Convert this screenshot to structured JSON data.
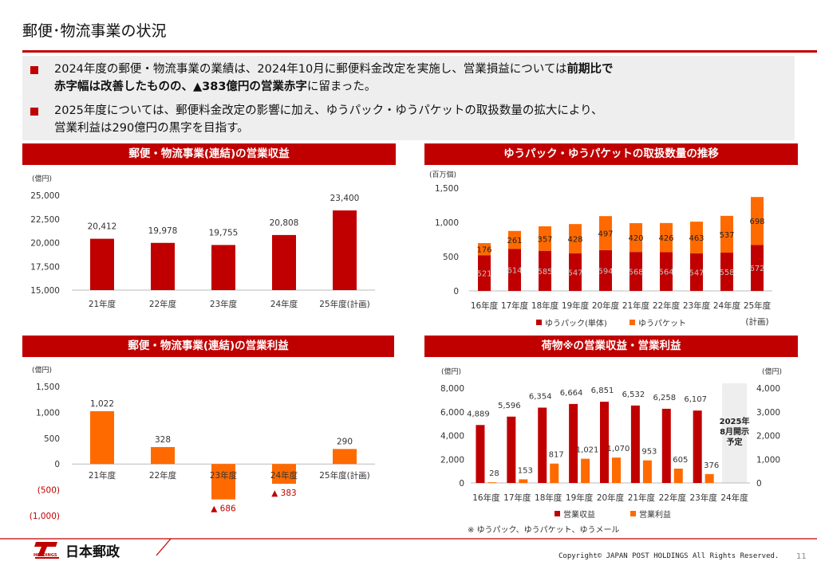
{
  "header": {
    "title": "郵便･物流事業の状況"
  },
  "summary": {
    "b1_l1a": "2024年度の郵便・物流事業の業績は、2024年10月に郵便料金改定を実施し、営業損益については",
    "b1_l1b": "前期比で",
    "b1_l2a": "赤字幅は改善したものの、▲383億円の営業赤字",
    "b1_l2b": "に留まった。",
    "b2_l1": "2025年度については、郵便料金改定の影響に加え、ゆうパック・ゆうパケットの取扱数量の拡大により、",
    "b2_l2": "営業利益は290億円の黒字を目指す。"
  },
  "colors": {
    "red": "#c00000",
    "orange": "#ff6a00",
    "panel": "#eeeeee"
  },
  "footer": {
    "logo_text": "日本郵政",
    "logo_sub": "HOLDINGS",
    "copyright": "Copyright© JAPAN POST HOLDINGS All Rights Reserved.",
    "page": "11"
  },
  "chart_data": [
    {
      "type": "bar",
      "title": "郵便・物流事業(連結)の営業収益",
      "unit": "(億円)",
      "categories": [
        "21年度",
        "22年度",
        "23年度",
        "24年度",
        "25年度(計画)"
      ],
      "values": [
        20412,
        19978,
        19755,
        20808,
        23400
      ],
      "labels": [
        "20,412",
        "19,978",
        "19,755",
        "20,808",
        "23,400"
      ],
      "ylim": [
        15000,
        25000
      ],
      "yticks": [
        "15,000",
        "17,500",
        "20,000",
        "22,500",
        "25,000"
      ],
      "color": "#c00000"
    },
    {
      "type": "bar",
      "stacked": true,
      "title": "ゆうパック・ゆうパケットの取扱数量の推移",
      "unit": "(百万個)",
      "categories": [
        "16年度",
        "17年度",
        "18年度",
        "19年度",
        "20年度",
        "21年度",
        "22年度",
        "23年度",
        "24年度",
        "25年度"
      ],
      "extra_label": "(計画)",
      "ylim": [
        0,
        1500
      ],
      "yticks": [
        "0",
        "500",
        "1,000",
        "1,500"
      ],
      "series": [
        {
          "name": "ゆうパック(単体)",
          "color": "#c00000",
          "values": [
            521,
            614,
            585,
            547,
            594,
            568,
            564,
            547,
            558,
            672
          ]
        },
        {
          "name": "ゆうパケット",
          "color": "#ff6a00",
          "values": [
            176,
            261,
            357,
            428,
            497,
            420,
            426,
            463,
            537,
            698
          ]
        }
      ]
    },
    {
      "type": "bar",
      "title": "郵便・物流事業(連結)の営業利益",
      "unit": "(億円)",
      "categories": [
        "21年度",
        "22年度",
        "23年度",
        "24年度",
        "25年度(計画)"
      ],
      "values": [
        1022,
        328,
        -686,
        -383,
        290
      ],
      "labels": [
        "1,022",
        "328",
        "▲ 686",
        "▲ 383",
        "290"
      ],
      "ylim": [
        -1000,
        1500
      ],
      "yticks": [
        "(1,000)",
        "(500)",
        "0",
        "500",
        "1,000",
        "1,500"
      ],
      "color": "#ff6a00",
      "negative_label_color": "#c00000"
    },
    {
      "type": "bar",
      "title": "荷物※の営業収益・営業利益",
      "unit_left": "(億円)",
      "unit_right": "(億円)",
      "categories": [
        "16年度",
        "17年度",
        "18年度",
        "19年度",
        "20年度",
        "21年度",
        "22年度",
        "23年度",
        "24年度"
      ],
      "ylim_left": [
        0,
        8000
      ],
      "ylim_right": [
        0,
        4000
      ],
      "yticks_left": [
        "0",
        "2,000",
        "4,000",
        "6,000",
        "8,000"
      ],
      "yticks_right": [
        "0",
        "1,000",
        "2,000",
        "3,000",
        "4,000"
      ],
      "series": [
        {
          "name": "営業収益",
          "color": "#c00000",
          "axis": "left",
          "values": [
            4889,
            5596,
            6354,
            6664,
            6851,
            6532,
            6258,
            6107,
            null
          ],
          "labels": [
            "4,889",
            "5,596",
            "6,354",
            "6,664",
            "6,851",
            "6,532",
            "6,258",
            "6,107",
            ""
          ]
        },
        {
          "name": "営業利益",
          "color": "#ff6a00",
          "axis": "right",
          "values": [
            28,
            153,
            817,
            1021,
            1070,
            953,
            605,
            376,
            null
          ],
          "labels": [
            "28",
            "153",
            "817",
            "1,021",
            "1,070",
            "953",
            "605",
            "376",
            ""
          ]
        }
      ],
      "note_box": "2025年8月開示予定",
      "note_box_lines": [
        "2025年",
        "8月開示",
        "予定"
      ],
      "footnote": "※ ゆうパック、ゆうパケット、ゆうメール"
    }
  ]
}
